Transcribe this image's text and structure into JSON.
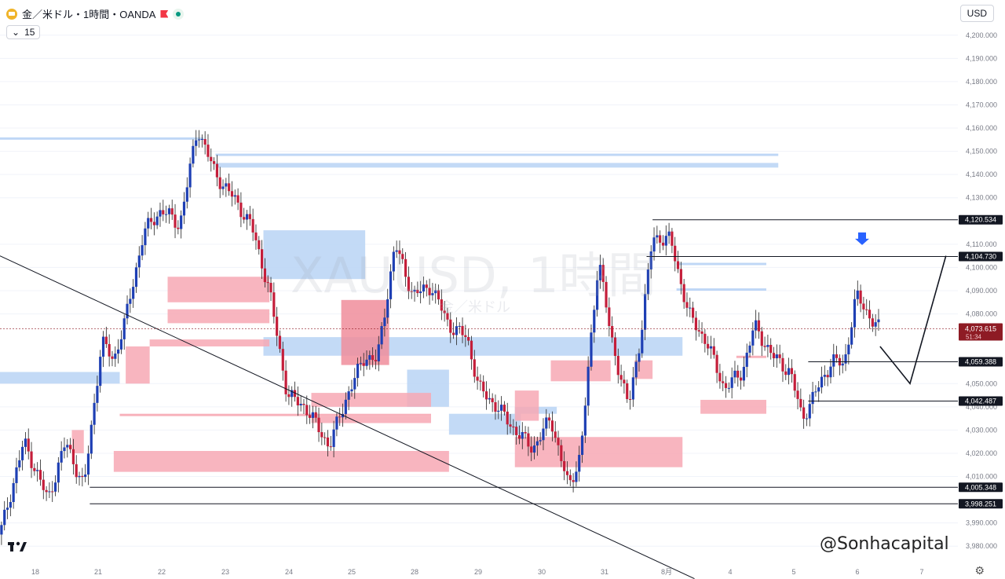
{
  "header": {
    "symbol_title": "金／米ドル・1時間・OANDA",
    "interval_value": "15",
    "currency": "USD"
  },
  "watermark": {
    "main": "XAUUSD, 1時間",
    "sub": "金／米ドル"
  },
  "credit": "@Sonhacapital",
  "logo_text": "TV",
  "colors": {
    "bull": "#1e3fb4",
    "bear": "#c41e3a",
    "demand_zone": "#f7a8b4",
    "supply_zone": "#b8d3f5",
    "price_badge": "#8e1b24"
  },
  "chart_data": {
    "type": "candlestick",
    "ylim": [
      3975,
      4205
    ],
    "y_ticks": [
      {
        "value": 3980,
        "label": "3,980.000"
      },
      {
        "value": 3990,
        "label": "3,990.000"
      },
      {
        "value": 4010,
        "label": "4,010.000"
      },
      {
        "value": 4020,
        "label": "4,020.000"
      },
      {
        "value": 4030,
        "label": "4,030.000"
      },
      {
        "value": 4040,
        "label": "4,040.000"
      },
      {
        "value": 4050,
        "label": "4,050.000"
      },
      {
        "value": 4080,
        "label": "4,080.000"
      },
      {
        "value": 4090,
        "label": "4,090.000"
      },
      {
        "value": 4100,
        "label": "4,100.000"
      },
      {
        "value": 4110,
        "label": "4,110.000"
      },
      {
        "value": 4130,
        "label": "4,130.000"
      },
      {
        "value": 4140,
        "label": "4,140.000"
      },
      {
        "value": 4150,
        "label": "4,150.000"
      },
      {
        "value": 4160,
        "label": "4,160.000"
      },
      {
        "value": 4170,
        "label": "4,170.000"
      },
      {
        "value": 4180,
        "label": "4,180.000"
      },
      {
        "value": 4190,
        "label": "4,190.000"
      },
      {
        "value": 4200,
        "label": "4,200.000"
      }
    ],
    "x_ticks": [
      "18",
      "21",
      "22",
      "23",
      "24",
      "25",
      "28",
      "29",
      "30",
      "31",
      "8月",
      "4",
      "5",
      "6",
      "7"
    ],
    "price_levels": [
      {
        "value": 4120.534,
        "label": "4,120.534"
      },
      {
        "value": 4104.73,
        "label": "4,104.730"
      },
      {
        "value": 4059.388,
        "label": "4,059.388"
      },
      {
        "value": 4042.487,
        "label": "4,042.487"
      },
      {
        "value": 4005.348,
        "label": "4,005.348"
      },
      {
        "value": 3998.251,
        "label": "3,998.251"
      }
    ],
    "current_price": {
      "value": 4073.615,
      "label": "4,073.615",
      "countdown": "51:34"
    },
    "path": [
      {
        "x": 0,
        "y": 3985
      },
      {
        "x": 4,
        "y": 4025
      },
      {
        "x": 8,
        "y": 4000
      },
      {
        "x": 11,
        "y": 4025
      },
      {
        "x": 14,
        "y": 4005
      },
      {
        "x": 17,
        "y": 4068
      },
      {
        "x": 19,
        "y": 4060
      },
      {
        "x": 21,
        "y": 4078
      },
      {
        "x": 24,
        "y": 4115
      },
      {
        "x": 27,
        "y": 4125
      },
      {
        "x": 30,
        "y": 4118
      },
      {
        "x": 33,
        "y": 4160
      },
      {
        "x": 36,
        "y": 4140
      },
      {
        "x": 39,
        "y": 4130
      },
      {
        "x": 42,
        "y": 4118
      },
      {
        "x": 45,
        "y": 4090
      },
      {
        "x": 48,
        "y": 4045
      },
      {
        "x": 51,
        "y": 4040
      },
      {
        "x": 55,
        "y": 4023
      },
      {
        "x": 58,
        "y": 4045
      },
      {
        "x": 61,
        "y": 4062
      },
      {
        "x": 63,
        "y": 4060
      },
      {
        "x": 66,
        "y": 4110
      },
      {
        "x": 69,
        "y": 4088
      },
      {
        "x": 72,
        "y": 4092
      },
      {
        "x": 75,
        "y": 4075
      },
      {
        "x": 78,
        "y": 4070
      },
      {
        "x": 80,
        "y": 4048
      },
      {
        "x": 83,
        "y": 4040
      },
      {
        "x": 86,
        "y": 4030
      },
      {
        "x": 89,
        "y": 4022
      },
      {
        "x": 92,
        "y": 4035
      },
      {
        "x": 95,
        "y": 4005
      },
      {
        "x": 97,
        "y": 4020
      },
      {
        "x": 100,
        "y": 4105
      },
      {
        "x": 102,
        "y": 4070
      },
      {
        "x": 105,
        "y": 4040
      },
      {
        "x": 107,
        "y": 4070
      },
      {
        "x": 109,
        "y": 4113
      },
      {
        "x": 112,
        "y": 4112
      },
      {
        "x": 115,
        "y": 4080
      },
      {
        "x": 118,
        "y": 4068
      },
      {
        "x": 121,
        "y": 4048
      },
      {
        "x": 124,
        "y": 4055
      },
      {
        "x": 126,
        "y": 4075
      },
      {
        "x": 129,
        "y": 4062
      },
      {
        "x": 132,
        "y": 4055
      },
      {
        "x": 134,
        "y": 4035
      },
      {
        "x": 136,
        "y": 4045
      },
      {
        "x": 139,
        "y": 4060
      },
      {
        "x": 141,
        "y": 4058
      },
      {
        "x": 143,
        "y": 4088
      },
      {
        "x": 145,
        "y": 4080
      },
      {
        "x": 147,
        "y": 4073
      }
    ],
    "projection": [
      {
        "x": 147,
        "y": 4066
      },
      {
        "x": 152,
        "y": 4050
      },
      {
        "x": 158,
        "y": 4105
      }
    ],
    "trendline": {
      "start": {
        "x": 0,
        "y": 4105
      },
      "end": {
        "x": 116,
        "y": 3966
      }
    },
    "arrow_at": {
      "x": 144,
      "y": 4111
    },
    "zones": [
      {
        "kind": "supply",
        "x0": 0,
        "x1": 20,
        "y0": 4050,
        "y1": 4055
      },
      {
        "kind": "supply_line",
        "x0": 0,
        "x1": 34,
        "y0": 4155,
        "y1": 4156
      },
      {
        "kind": "supply",
        "x0": 36,
        "x1": 130,
        "y0": 4143,
        "y1": 4145
      },
      {
        "kind": "supply_line",
        "x0": 36,
        "x1": 130,
        "y0": 4148,
        "y1": 4149
      },
      {
        "kind": "supply",
        "x0": 44,
        "x1": 61,
        "y0": 4095,
        "y1": 4116
      },
      {
        "kind": "supply",
        "x0": 44,
        "x1": 104,
        "y0": 4062,
        "y1": 4070
      },
      {
        "kind": "supply",
        "x0": 68,
        "x1": 75,
        "y0": 4040,
        "y1": 4056
      },
      {
        "kind": "supply",
        "x0": 75,
        "x1": 87,
        "y0": 4028,
        "y1": 4037
      },
      {
        "kind": "supply",
        "x0": 86,
        "x1": 93,
        "y0": 4037,
        "y1": 4040
      },
      {
        "kind": "supply",
        "x0": 104,
        "x1": 114,
        "y0": 4062,
        "y1": 4070
      },
      {
        "kind": "supply_line",
        "x0": 113,
        "x1": 128,
        "y0": 4090,
        "y1": 4091
      },
      {
        "kind": "supply_line",
        "x0": 113,
        "x1": 128,
        "y0": 4101,
        "y1": 4102
      },
      {
        "kind": "demand",
        "x0": 28,
        "x1": 45,
        "y0": 4085,
        "y1": 4096
      },
      {
        "kind": "demand",
        "x0": 28,
        "x1": 45,
        "y0": 4076,
        "y1": 4082
      },
      {
        "kind": "demand",
        "x0": 25,
        "x1": 45,
        "y0": 4066,
        "y1": 4069
      },
      {
        "kind": "demand",
        "x0": 21,
        "x1": 25,
        "y0": 4050,
        "y1": 4066
      },
      {
        "kind": "demand_strong",
        "x0": 57,
        "x1": 65,
        "y0": 4058,
        "y1": 4086
      },
      {
        "kind": "demand",
        "x0": 52,
        "x1": 72,
        "y0": 4040,
        "y1": 4046
      },
      {
        "kind": "demand",
        "x0": 52,
        "x1": 72,
        "y0": 4033,
        "y1": 4036
      },
      {
        "kind": "demand_line",
        "x0": 20,
        "x1": 72,
        "y0": 4036,
        "y1": 4037
      },
      {
        "kind": "demand",
        "x0": 19,
        "x1": 75,
        "y0": 4012,
        "y1": 4021
      },
      {
        "kind": "demand",
        "x0": 12,
        "x1": 14,
        "y0": 4020,
        "y1": 4030
      },
      {
        "kind": "demand",
        "x0": 86,
        "x1": 114,
        "y0": 4014,
        "y1": 4027
      },
      {
        "kind": "demand",
        "x0": 86,
        "x1": 90,
        "y0": 4034,
        "y1": 4047
      },
      {
        "kind": "demand",
        "x0": 92,
        "x1": 102,
        "y0": 4051,
        "y1": 4060
      },
      {
        "kind": "demand",
        "x0": 117,
        "x1": 128,
        "y0": 4037,
        "y1": 4043
      },
      {
        "kind": "demand",
        "x0": 106,
        "x1": 109,
        "y0": 4052,
        "y1": 4060
      },
      {
        "kind": "demand_line",
        "x0": 123,
        "x1": 128,
        "y0": 4061,
        "y1": 4062
      }
    ]
  }
}
